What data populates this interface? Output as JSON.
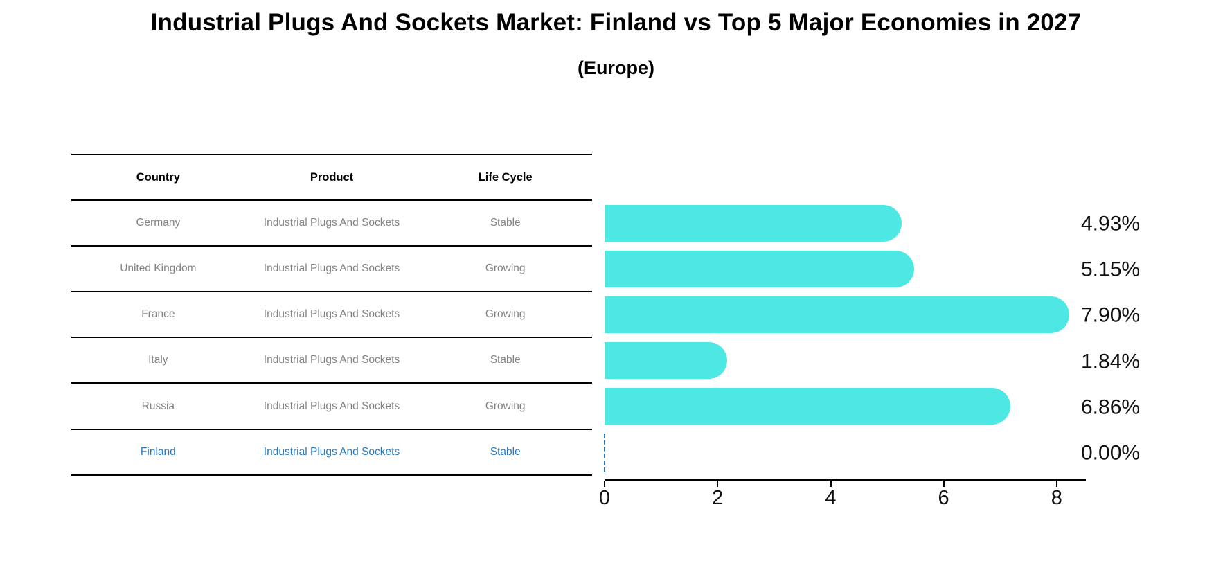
{
  "title": "Industrial Plugs And Sockets Market: Finland vs Top 5 Major Economies in 2027",
  "subtitle": "(Europe)",
  "table": {
    "headers": [
      "Country",
      "Product",
      "Life Cycle"
    ],
    "rows": [
      {
        "country": "Germany",
        "product": "Industrial Plugs And Sockets",
        "life_cycle": "Stable",
        "highlight": false
      },
      {
        "country": "United Kingdom",
        "product": "Industrial Plugs And Sockets",
        "life_cycle": "Growing",
        "highlight": false
      },
      {
        "country": "France",
        "product": "Industrial Plugs And Sockets",
        "life_cycle": "Growing",
        "highlight": false
      },
      {
        "country": "Italy",
        "product": "Industrial Plugs And Sockets",
        "life_cycle": "Stable",
        "highlight": false
      },
      {
        "country": "Russia",
        "product": "Industrial Plugs And Sockets",
        "life_cycle": "Growing",
        "highlight": false
      },
      {
        "country": "Finland",
        "product": "Industrial Plugs And Sockets",
        "life_cycle": "Stable",
        "highlight": true
      }
    ]
  },
  "chart_data": {
    "type": "bar",
    "orientation": "horizontal",
    "title": "Industrial Plugs And Sockets Market: Finland vs Top 5 Major Economies in 2027 (Europe)",
    "categories": [
      "Germany",
      "United Kingdom",
      "France",
      "Italy",
      "Russia",
      "Finland"
    ],
    "values": [
      4.93,
      5.15,
      7.9,
      1.84,
      6.86,
      0.0
    ],
    "value_labels": [
      "4.93%",
      "5.15%",
      "7.90%",
      "1.84%",
      "6.86%",
      "0.00%"
    ],
    "x_ticks": [
      "0",
      "2",
      "4",
      "6",
      "8"
    ],
    "x_tick_values": [
      0,
      2,
      4,
      6,
      8
    ],
    "xlim": [
      0,
      8.5
    ],
    "grid": false,
    "legend": "none",
    "bar_color": "#4DE8E4",
    "highlight_color": "#2878BE",
    "zero_value_marker": "dashed-line"
  }
}
